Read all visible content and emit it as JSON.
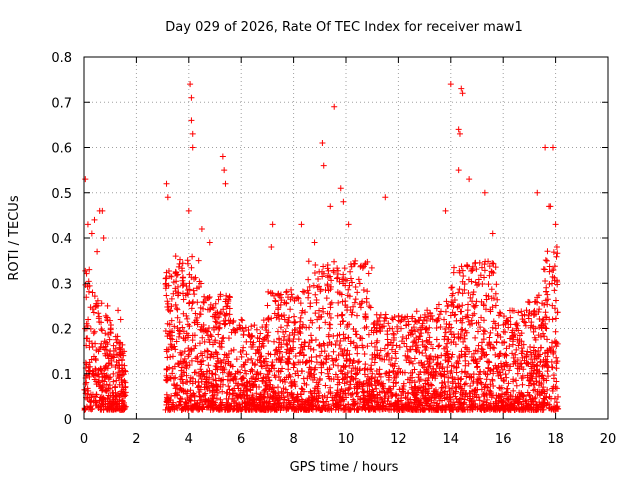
{
  "chart_data": {
    "type": "scatter",
    "title": "Day 029 of 2026, Rate Of TEC Index for receiver maw1",
    "xlabel": "GPS time / hours",
    "ylabel": "ROTI / TECUs",
    "xlim": [
      0,
      20
    ],
    "ylim": [
      0,
      0.8
    ],
    "xticks": [
      0,
      2,
      4,
      6,
      8,
      10,
      12,
      14,
      16,
      18,
      20
    ],
    "yticks": [
      0,
      0.1,
      0.2,
      0.3,
      0.4,
      0.5,
      0.6,
      0.7,
      0.8
    ],
    "xtick_labels": [
      "0",
      "2",
      "4",
      "6",
      "8",
      "10",
      "12",
      "14",
      "16",
      "18",
      "20"
    ],
    "ytick_labels": [
      "0",
      "0.1",
      "0.2",
      "0.3",
      "0.4",
      "0.5",
      "0.6",
      "0.7",
      "0.8"
    ],
    "grid": true,
    "marker": "plus",
    "color": "#ff0000",
    "observation_windows_hours": [
      [
        0.0,
        1.6
      ],
      [
        3.1,
        18.1
      ]
    ],
    "series": [
      {
        "points": [
          [
            0.05,
            0.53
          ],
          [
            0.15,
            0.43
          ],
          [
            0.2,
            0.33
          ],
          [
            0.3,
            0.41
          ],
          [
            0.4,
            0.44
          ],
          [
            0.5,
            0.37
          ],
          [
            0.6,
            0.46
          ],
          [
            0.7,
            0.46
          ],
          [
            0.75,
            0.4
          ],
          [
            0.9,
            0.25
          ],
          [
            1.0,
            0.15
          ],
          [
            1.3,
            0.24
          ],
          [
            1.4,
            0.22
          ],
          [
            1.5,
            0.14
          ],
          [
            3.15,
            0.52
          ],
          [
            3.2,
            0.49
          ],
          [
            3.5,
            0.36
          ],
          [
            3.8,
            0.3
          ],
          [
            4.0,
            0.46
          ],
          [
            4.05,
            0.74
          ],
          [
            4.1,
            0.71
          ],
          [
            4.1,
            0.66
          ],
          [
            4.15,
            0.63
          ],
          [
            4.15,
            0.6
          ],
          [
            4.5,
            0.42
          ],
          [
            4.8,
            0.39
          ],
          [
            5.3,
            0.58
          ],
          [
            5.35,
            0.55
          ],
          [
            5.4,
            0.52
          ],
          [
            7.2,
            0.43
          ],
          [
            7.15,
            0.38
          ],
          [
            8.3,
            0.43
          ],
          [
            8.8,
            0.39
          ],
          [
            9.1,
            0.61
          ],
          [
            9.15,
            0.56
          ],
          [
            9.4,
            0.47
          ],
          [
            9.55,
            0.69
          ],
          [
            9.8,
            0.51
          ],
          [
            9.9,
            0.48
          ],
          [
            10.1,
            0.43
          ],
          [
            11.5,
            0.49
          ],
          [
            13.8,
            0.46
          ],
          [
            14.0,
            0.74
          ],
          [
            14.3,
            0.64
          ],
          [
            14.35,
            0.63
          ],
          [
            14.4,
            0.73
          ],
          [
            14.45,
            0.72
          ],
          [
            14.3,
            0.55
          ],
          [
            14.7,
            0.53
          ],
          [
            15.3,
            0.5
          ],
          [
            15.6,
            0.41
          ],
          [
            17.3,
            0.5
          ],
          [
            17.6,
            0.6
          ],
          [
            17.75,
            0.47
          ],
          [
            17.8,
            0.47
          ],
          [
            17.9,
            0.6
          ],
          [
            18.0,
            0.43
          ],
          [
            18.05,
            0.38
          ]
        ]
      }
    ]
  }
}
